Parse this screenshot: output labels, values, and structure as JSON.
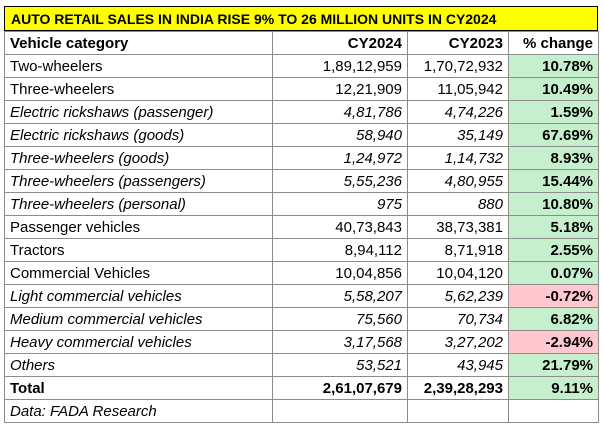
{
  "title": "AUTO RETAIL SALES IN INDIA RISE 9% TO 26 MILLION UNITS IN CY2024",
  "headers": {
    "category": "Vehicle category",
    "cy2024": "CY2024",
    "cy2023": "CY2023",
    "change": "% change"
  },
  "rows": [
    {
      "category": "Two-wheelers",
      "cy2024": "1,89,12,959",
      "cy2023": "1,70,72,932",
      "change": "10.78%",
      "italic": false,
      "trend": "pos"
    },
    {
      "category": "Three-wheelers",
      "cy2024": "12,21,909",
      "cy2023": "11,05,942",
      "change": "10.49%",
      "italic": false,
      "trend": "pos"
    },
    {
      "category": "Electric rickshaws (passenger)",
      "cy2024": "4,81,786",
      "cy2023": "4,74,226",
      "change": "1.59%",
      "italic": true,
      "trend": "pos"
    },
    {
      "category": "Electric rickshaws (goods)",
      "cy2024": "58,940",
      "cy2023": "35,149",
      "change": "67.69%",
      "italic": true,
      "trend": "pos"
    },
    {
      "category": "Three-wheelers (goods)",
      "cy2024": "1,24,972",
      "cy2023": "1,14,732",
      "change": "8.93%",
      "italic": true,
      "trend": "pos"
    },
    {
      "category": "Three-wheelers (passengers)",
      "cy2024": "5,55,236",
      "cy2023": "4,80,955",
      "change": "15.44%",
      "italic": true,
      "trend": "pos"
    },
    {
      "category": "Three-wheelers (personal)",
      "cy2024": "975",
      "cy2023": "880",
      "change": "10.80%",
      "italic": true,
      "trend": "pos"
    },
    {
      "category": "Passenger vehicles",
      "cy2024": "40,73,843",
      "cy2023": "38,73,381",
      "change": "5.18%",
      "italic": false,
      "trend": "pos"
    },
    {
      "category": "Tractors",
      "cy2024": "8,94,112",
      "cy2023": "8,71,918",
      "change": "2.55%",
      "italic": false,
      "trend": "pos"
    },
    {
      "category": "Commercial Vehicles",
      "cy2024": "10,04,856",
      "cy2023": "10,04,120",
      "change": "0.07%",
      "italic": false,
      "trend": "pos"
    },
    {
      "category": "Light commercial vehicles",
      "cy2024": "5,58,207",
      "cy2023": "5,62,239",
      "change": "-0.72%",
      "italic": true,
      "trend": "neg"
    },
    {
      "category": "Medium commercial vehicles",
      "cy2024": "75,560",
      "cy2023": "70,734",
      "change": "6.82%",
      "italic": true,
      "trend": "pos"
    },
    {
      "category": "Heavy commercial vehicles",
      "cy2024": "3,17,568",
      "cy2023": "3,27,202",
      "change": "-2.94%",
      "italic": true,
      "trend": "neg"
    },
    {
      "category": "Others",
      "cy2024": "53,521",
      "cy2023": "43,945",
      "change": "21.79%",
      "italic": true,
      "trend": "pos"
    }
  ],
  "total": {
    "category": "Total",
    "cy2024": "2,61,07,679",
    "cy2023": "2,39,28,293",
    "change": "9.11%"
  },
  "source": "Data: FADA Research",
  "colors": {
    "title_bg": "#ffff00",
    "positive_bg": "#c6efce",
    "negative_bg": "#ffc7ce"
  }
}
